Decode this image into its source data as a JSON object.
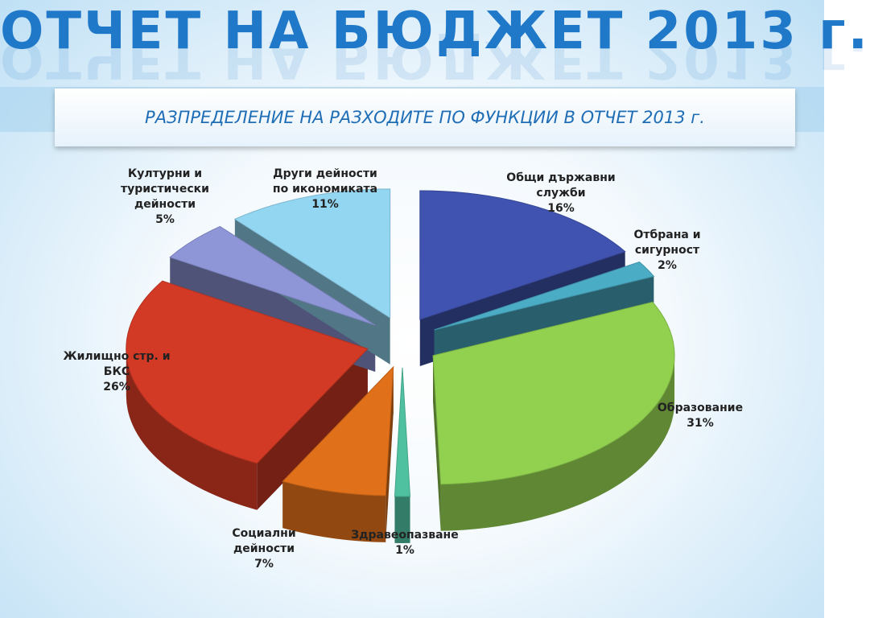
{
  "chart_data": {
    "type": "pie",
    "title": "ОТЧЕТ НА БЮДЖЕТ 2013 г.",
    "subtitle": "РАЗПРЕДЕЛЕНИЕ НА РАЗХОДИТЕ ПО ФУНКЦИИ В ОТЧЕТ 2013 г.",
    "categories": [
      "Общи държавни служби",
      "Отбрана и сигурност",
      "Образование",
      "Здравеопазване",
      "Социални дейности",
      "Жилищно стр. и БКС",
      "Културни и туристически дейности",
      "Други дейности по икономиката"
    ],
    "values": [
      16,
      2,
      31,
      1,
      7,
      26,
      5,
      11
    ],
    "value_labels": [
      "16%",
      "2%",
      "31%",
      "1%",
      "7%",
      "26%",
      "5%",
      "11%"
    ],
    "colors": [
      "#4053b0",
      "#4bacc6",
      "#92d050",
      "#4fc1a0",
      "#e0701a",
      "#d23a25",
      "#8e96d8",
      "#93d6f2"
    ]
  }
}
